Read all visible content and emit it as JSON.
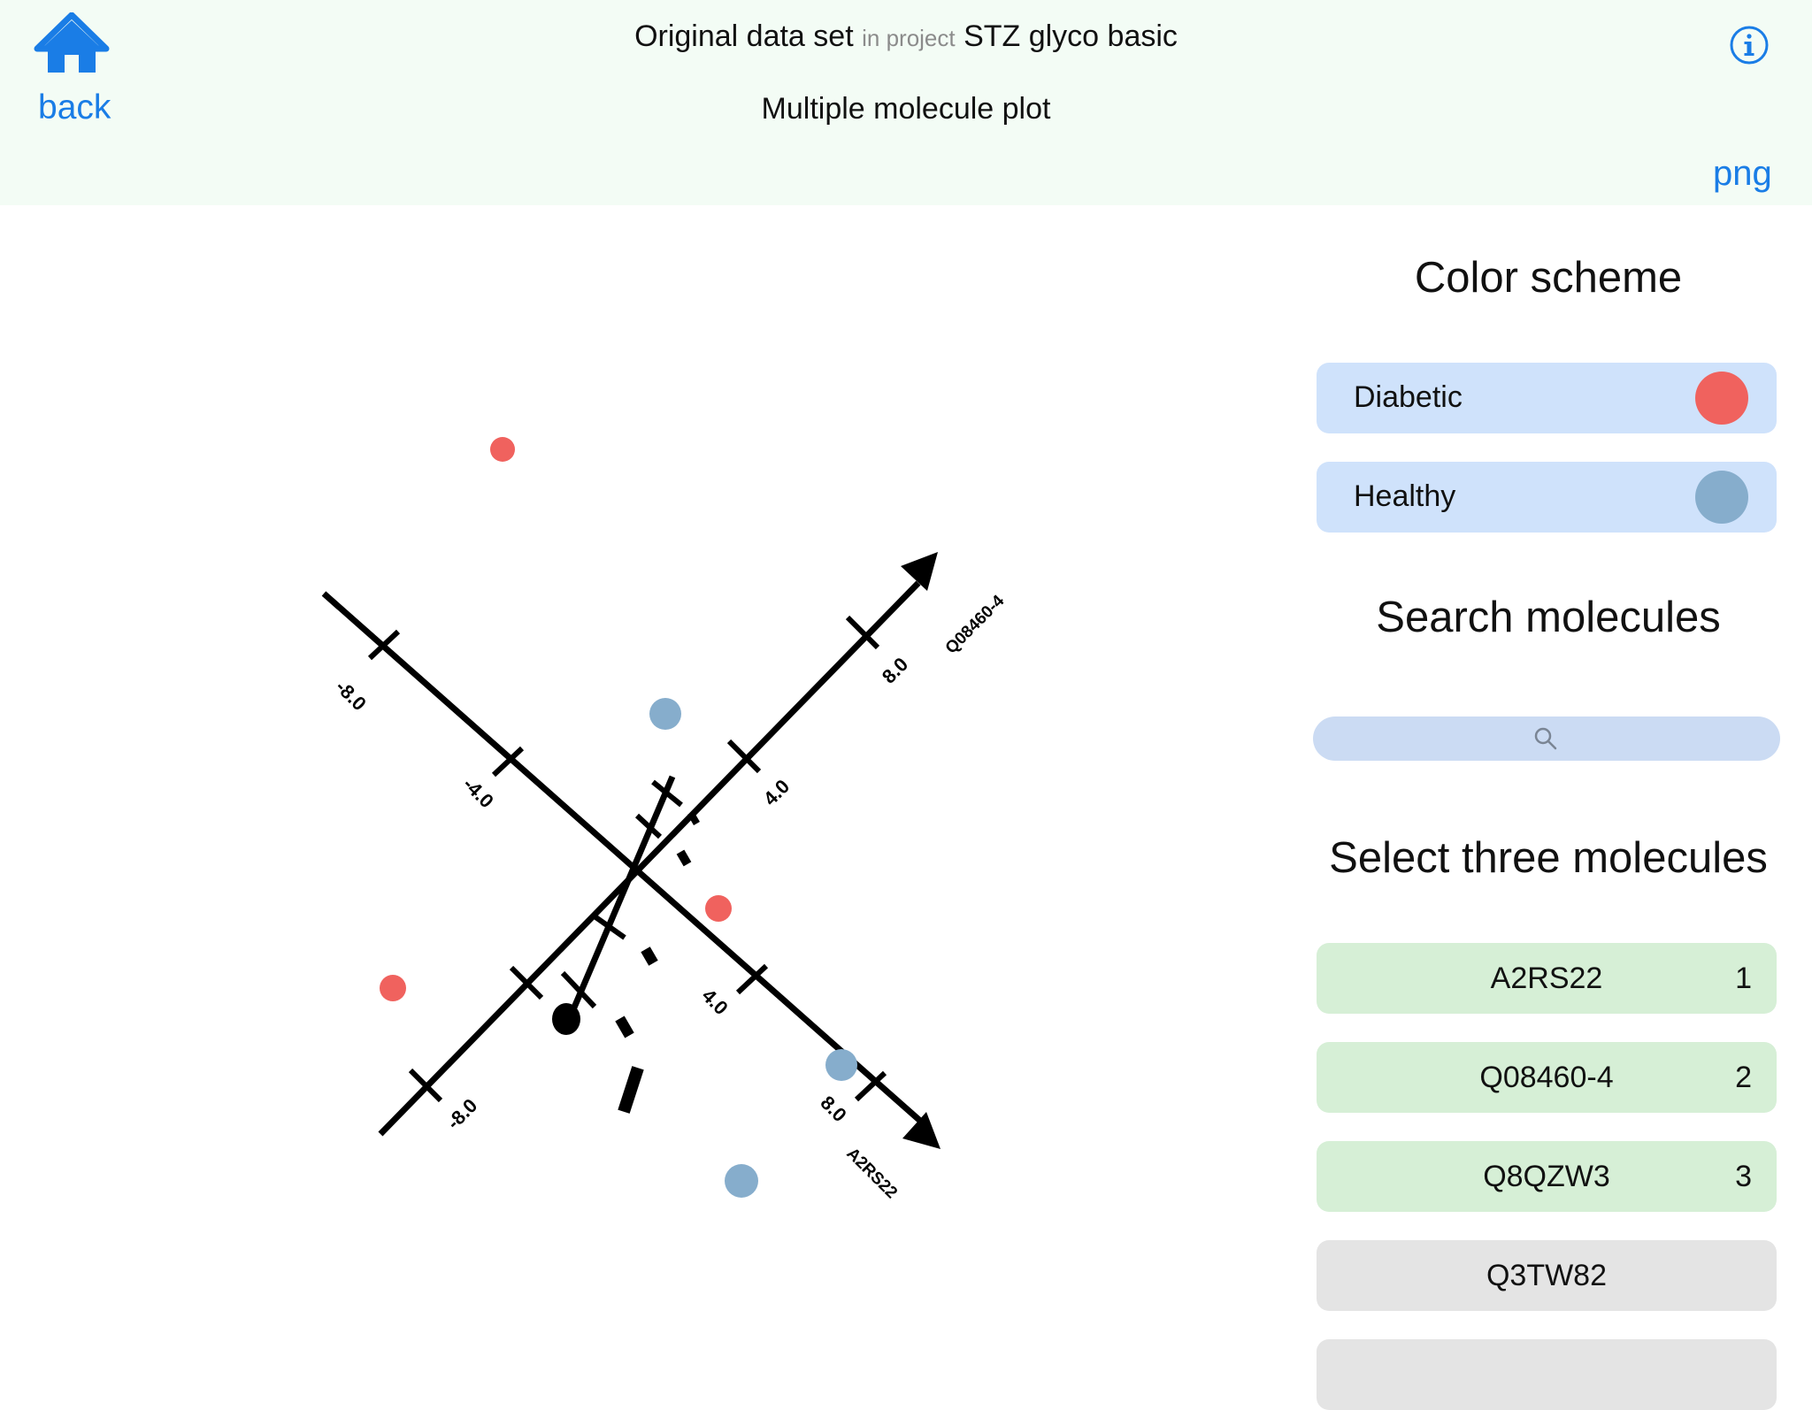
{
  "header": {
    "back_label": "back",
    "dataset_name": "Original data set",
    "in_project_label": "in project",
    "project_name": "STZ glyco basic",
    "plot_title": "Multiple molecule plot",
    "export_label": "png",
    "home_icon": "home-icon",
    "info_icon": "info-icon"
  },
  "plot": {
    "axes": [
      {
        "name": "A2RS22",
        "tick_labels": [
          "-8.0",
          "-4.0",
          "4.0",
          "8.0"
        ]
      },
      {
        "name": "Q08460-4",
        "tick_labels": [
          "-8.0",
          "4.0",
          "8.0"
        ]
      }
    ],
    "colors": {
      "diabetic": "#f0625e",
      "healthy": "#86adcc",
      "axis": "#000000"
    }
  },
  "panel": {
    "color_scheme_title": "Color scheme",
    "color_scheme": [
      {
        "label": "Diabetic",
        "color": "#f0625e"
      },
      {
        "label": "Healthy",
        "color": "#86adcc"
      }
    ],
    "search_title": "Search molecules",
    "search": {
      "value": "",
      "placeholder": "",
      "icon": "search-icon"
    },
    "select_title": "Select three molecules",
    "molecules": [
      {
        "name": "A2RS22",
        "rank": "1",
        "selected": true
      },
      {
        "name": "Q08460-4",
        "rank": "2",
        "selected": true
      },
      {
        "name": "Q8QZW3",
        "rank": "3",
        "selected": true
      },
      {
        "name": "Q3TW82",
        "rank": "",
        "selected": false
      }
    ],
    "selected_color": "#d6efd6",
    "unselected_color": "#e4e4e4"
  }
}
